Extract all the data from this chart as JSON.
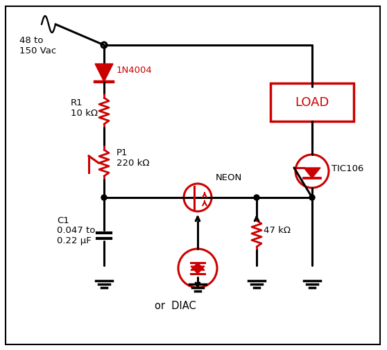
{
  "bg_color": "#ffffff",
  "line_color": "#cc0000",
  "wire_color": "#000000",
  "title": "",
  "components": {
    "ac_source_label": "48 to\n150 Vac",
    "r1_label": "R1\n10 kΩ",
    "p1_label": "P1\n220 kΩ",
    "c1_label": "C1\n0.047 to\n0.22 μF",
    "neon_label": "NEON",
    "diac_label": "or  DIAC",
    "r47_label": "47 kΩ",
    "tic_label": "TIC106",
    "load_label": "LOAD",
    "diode_label": "1N4004"
  }
}
